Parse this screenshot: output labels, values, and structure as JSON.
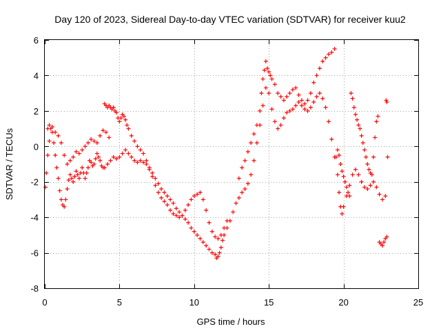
{
  "chart_data": {
    "type": "scatter",
    "title": "Day 120 of 2023, Sidereal Day-to-day VTEC variation (SDTVAR) for receiver kuu2",
    "xlabel": "GPS time / hours",
    "ylabel": "SDTVAR / TECUs",
    "xlim": [
      0,
      25
    ],
    "ylim": [
      -8,
      6
    ],
    "xticks": [
      0,
      5,
      10,
      15,
      20,
      25
    ],
    "yticks": [
      -8,
      -6,
      -4,
      -2,
      0,
      2,
      4,
      6
    ],
    "grid": true,
    "marker": "+",
    "color": "#ff0000",
    "series": [
      {
        "name": "SDTVAR",
        "points": [
          [
            0.05,
            -2.3
          ],
          [
            0.1,
            -1.5
          ],
          [
            0.2,
            -0.5
          ],
          [
            0.3,
            0.3
          ],
          [
            0.4,
            1.0
          ],
          [
            0.5,
            0.8
          ],
          [
            0.6,
            0.2
          ],
          [
            0.7,
            -0.5
          ],
          [
            0.8,
            -1.2
          ],
          [
            0.9,
            -1.8
          ],
          [
            1.0,
            -2.5
          ],
          [
            1.1,
            -3.0
          ],
          [
            1.2,
            -3.3
          ],
          [
            1.3,
            -3.4
          ],
          [
            1.4,
            -3.0
          ],
          [
            1.5,
            -2.4
          ],
          [
            1.6,
            -1.9
          ],
          [
            1.7,
            -1.6
          ],
          [
            1.8,
            -1.8
          ],
          [
            1.9,
            -2.0
          ],
          [
            2.0,
            -1.7
          ],
          [
            2.1,
            -1.4
          ],
          [
            2.2,
            -1.6
          ],
          [
            2.3,
            -1.8
          ],
          [
            2.4,
            -1.5
          ],
          [
            2.5,
            -1.2
          ],
          [
            2.6,
            -1.5
          ],
          [
            2.7,
            -1.8
          ],
          [
            2.8,
            -1.5
          ],
          [
            2.9,
            -1.2
          ],
          [
            3.0,
            -0.8
          ],
          [
            3.1,
            -0.9
          ],
          [
            3.2,
            -1.1
          ],
          [
            3.3,
            -1.0
          ],
          [
            3.4,
            -0.7
          ],
          [
            3.5,
            -0.4
          ],
          [
            3.6,
            -0.6
          ],
          [
            3.7,
            -0.8
          ],
          [
            3.8,
            -1.1
          ],
          [
            3.9,
            -1.2
          ],
          [
            4.0,
            -1.2
          ],
          [
            4.2,
            -1.0
          ],
          [
            4.4,
            -0.8
          ],
          [
            4.6,
            -0.6
          ],
          [
            4.8,
            -0.7
          ],
          [
            5.0,
            -0.6
          ],
          [
            5.2,
            -0.4
          ],
          [
            5.4,
            -0.2
          ],
          [
            5.6,
            -0.4
          ],
          [
            5.8,
            -0.6
          ],
          [
            6.0,
            -0.8
          ],
          [
            6.2,
            -0.9
          ],
          [
            6.4,
            -0.8
          ],
          [
            6.6,
            -0.9
          ],
          [
            6.8,
            -1.0
          ],
          [
            7.0,
            -1.2
          ],
          [
            7.2,
            -1.5
          ],
          [
            7.4,
            -1.8
          ],
          [
            7.6,
            -2.1
          ],
          [
            7.8,
            -2.4
          ],
          [
            8.0,
            -2.6
          ],
          [
            8.2,
            -2.8
          ],
          [
            8.4,
            -3.0
          ],
          [
            8.6,
            -3.2
          ],
          [
            8.8,
            -3.5
          ],
          [
            9.0,
            -3.7
          ],
          [
            9.2,
            -3.9
          ],
          [
            9.4,
            -4.1
          ],
          [
            9.6,
            -4.3
          ],
          [
            9.8,
            -4.6
          ],
          [
            10.0,
            -4.8
          ],
          [
            10.2,
            -5.0
          ],
          [
            10.4,
            -5.2
          ],
          [
            10.6,
            -5.4
          ],
          [
            10.8,
            -5.6
          ],
          [
            11.0,
            -5.8
          ],
          [
            11.2,
            -6.0
          ],
          [
            11.4,
            -6.1
          ],
          [
            11.5,
            -6.3
          ],
          [
            11.6,
            -6.2
          ],
          [
            11.7,
            -6.0
          ],
          [
            11.8,
            -5.7
          ],
          [
            11.9,
            -5.3
          ],
          [
            12.0,
            -5.0
          ],
          [
            12.2,
            -4.6
          ],
          [
            12.4,
            -4.2
          ],
          [
            12.6,
            -3.7
          ],
          [
            12.8,
            -3.2
          ],
          [
            13.0,
            -2.9
          ],
          [
            13.2,
            -2.6
          ],
          [
            13.4,
            -2.4
          ],
          [
            13.6,
            -2.1
          ],
          [
            13.8,
            -1.6
          ],
          [
            14.0,
            -0.8
          ],
          [
            14.2,
            0.2
          ],
          [
            14.4,
            1.2
          ],
          [
            14.6,
            2.3
          ],
          [
            14.8,
            3.3
          ],
          [
            15.0,
            3.0
          ],
          [
            15.2,
            2.1
          ],
          [
            15.4,
            1.4
          ],
          [
            15.6,
            1.0
          ],
          [
            15.8,
            1.2
          ],
          [
            16.0,
            1.6
          ],
          [
            16.2,
            1.9
          ],
          [
            16.4,
            2.0
          ],
          [
            16.6,
            2.1
          ],
          [
            16.8,
            2.3
          ],
          [
            17.0,
            2.5
          ],
          [
            17.2,
            2.3
          ],
          [
            17.4,
            2.1
          ],
          [
            17.6,
            2.0
          ],
          [
            17.8,
            2.2
          ],
          [
            18.0,
            2.5
          ],
          [
            18.2,
            2.8
          ],
          [
            18.4,
            3.0
          ],
          [
            18.6,
            2.7
          ],
          [
            18.8,
            2.2
          ],
          [
            19.0,
            1.4
          ],
          [
            19.2,
            0.4
          ],
          [
            19.4,
            -0.6
          ],
          [
            19.6,
            -1.6
          ],
          [
            19.7,
            -2.6
          ],
          [
            19.8,
            -3.4
          ],
          [
            19.9,
            -3.8
          ],
          [
            20.0,
            -3.4
          ],
          [
            20.2,
            -2.8
          ],
          [
            20.4,
            -2.2
          ],
          [
            20.6,
            -1.6
          ],
          [
            20.8,
            -1.3
          ],
          [
            21.0,
            -1.6
          ],
          [
            21.2,
            -2.0
          ],
          [
            21.4,
            -2.3
          ],
          [
            21.6,
            -2.4
          ],
          [
            21.8,
            -2.2
          ],
          [
            22.0,
            -2.0
          ],
          [
            22.2,
            -2.3
          ],
          [
            22.4,
            -2.7
          ],
          [
            22.6,
            -3.0
          ],
          [
            22.8,
            -2.8
          ],
          [
            0.2,
            1.0
          ],
          [
            0.3,
            1.2
          ],
          [
            0.5,
            1.1
          ],
          [
            0.7,
            0.8
          ],
          [
            0.9,
            0.6
          ],
          [
            1.1,
            0.2
          ],
          [
            1.3,
            -0.5
          ],
          [
            1.5,
            -1.0
          ],
          [
            1.7,
            -0.8
          ],
          [
            1.9,
            -0.6
          ],
          [
            2.1,
            -0.3
          ],
          [
            2.3,
            -0.4
          ],
          [
            2.5,
            -0.2
          ],
          [
            2.7,
            0.0
          ],
          [
            2.9,
            0.2
          ],
          [
            3.1,
            0.4
          ],
          [
            3.3,
            0.3
          ],
          [
            3.5,
            0.2
          ],
          [
            3.7,
            0.6
          ],
          [
            3.9,
            0.9
          ],
          [
            4.1,
            0.8
          ],
          [
            4.3,
            0.5
          ],
          [
            4.0,
            2.4
          ],
          [
            4.1,
            2.3
          ],
          [
            4.2,
            2.2
          ],
          [
            4.3,
            2.3
          ],
          [
            4.4,
            2.2
          ],
          [
            4.5,
            2.1
          ],
          [
            4.6,
            2.2
          ],
          [
            4.7,
            2.0
          ],
          [
            4.8,
            1.9
          ],
          [
            4.9,
            1.6
          ],
          [
            5.0,
            1.4
          ],
          [
            5.1,
            1.6
          ],
          [
            5.2,
            1.8
          ],
          [
            5.3,
            1.7
          ],
          [
            5.4,
            1.5
          ],
          [
            5.5,
            1.2
          ],
          [
            5.6,
            1.0
          ],
          [
            5.8,
            0.6
          ],
          [
            6.0,
            0.3
          ],
          [
            6.2,
            0.0
          ],
          [
            6.4,
            -0.2
          ],
          [
            6.6,
            -0.4
          ],
          [
            6.8,
            -0.8
          ],
          [
            7.0,
            -1.3
          ],
          [
            7.2,
            -1.7
          ],
          [
            7.4,
            -2.2
          ],
          [
            7.6,
            -2.6
          ],
          [
            7.8,
            -2.9
          ],
          [
            8.0,
            -3.1
          ],
          [
            8.2,
            -3.3
          ],
          [
            8.4,
            -3.6
          ],
          [
            8.6,
            -3.8
          ],
          [
            8.8,
            -3.9
          ],
          [
            9.0,
            -4.0
          ],
          [
            9.2,
            -3.9
          ],
          [
            9.4,
            -3.6
          ],
          [
            9.6,
            -3.3
          ],
          [
            9.8,
            -3.0
          ],
          [
            10.0,
            -2.8
          ],
          [
            10.2,
            -2.7
          ],
          [
            10.4,
            -2.6
          ],
          [
            10.6,
            -3.0
          ],
          [
            10.8,
            -3.6
          ],
          [
            11.0,
            -4.3
          ],
          [
            11.2,
            -4.8
          ],
          [
            11.4,
            -5.1
          ],
          [
            11.6,
            -5.2
          ],
          [
            11.8,
            -5.0
          ],
          [
            12.0,
            -4.6
          ],
          [
            12.2,
            -4.2
          ],
          [
            13.0,
            -1.8
          ],
          [
            13.2,
            -1.2
          ],
          [
            13.4,
            -0.8
          ],
          [
            13.6,
            -0.3
          ],
          [
            13.8,
            0.2
          ],
          [
            14.0,
            0.7
          ],
          [
            14.2,
            1.2
          ],
          [
            14.4,
            2.0
          ],
          [
            14.5,
            3.0
          ],
          [
            14.6,
            3.8
          ],
          [
            14.7,
            4.3
          ],
          [
            14.8,
            4.8
          ],
          [
            14.9,
            4.4
          ],
          [
            15.0,
            4.2
          ],
          [
            15.1,
            4.0
          ],
          [
            15.2,
            3.8
          ],
          [
            15.4,
            3.5
          ],
          [
            15.6,
            3.0
          ],
          [
            15.8,
            2.8
          ],
          [
            16.0,
            2.6
          ],
          [
            16.2,
            2.8
          ],
          [
            16.4,
            3.0
          ],
          [
            16.6,
            3.2
          ],
          [
            16.8,
            3.3
          ],
          [
            17.0,
            2.9
          ],
          [
            17.2,
            2.6
          ],
          [
            17.4,
            2.4
          ],
          [
            17.6,
            2.6
          ],
          [
            17.8,
            3.0
          ],
          [
            18.0,
            3.6
          ],
          [
            18.2,
            4.0
          ],
          [
            18.4,
            4.4
          ],
          [
            18.6,
            4.8
          ],
          [
            18.8,
            5.0
          ],
          [
            19.0,
            5.2
          ],
          [
            19.2,
            5.3
          ],
          [
            19.4,
            5.5
          ],
          [
            20.5,
            3.0
          ],
          [
            20.6,
            2.7
          ],
          [
            20.7,
            2.2
          ],
          [
            20.8,
            1.8
          ],
          [
            20.9,
            1.5
          ],
          [
            21.0,
            1.2
          ],
          [
            21.1,
            1.0
          ],
          [
            21.2,
            0.6
          ],
          [
            21.3,
            0.2
          ],
          [
            21.4,
            -0.2
          ],
          [
            21.5,
            -0.6
          ],
          [
            21.6,
            -1.0
          ],
          [
            21.7,
            -1.3
          ],
          [
            21.8,
            -1.5
          ],
          [
            21.9,
            -1.6
          ],
          [
            22.0,
            -0.6
          ],
          [
            22.1,
            0.5
          ],
          [
            22.2,
            1.4
          ],
          [
            22.3,
            1.7
          ],
          [
            19.5,
            -0.6
          ],
          [
            19.6,
            -0.2
          ],
          [
            19.7,
            -0.5
          ],
          [
            19.8,
            -1.0
          ],
          [
            19.9,
            -1.4
          ],
          [
            20.0,
            -1.7
          ],
          [
            20.1,
            -2.0
          ],
          [
            20.2,
            -2.3
          ],
          [
            20.3,
            -2.6
          ],
          [
            20.4,
            -2.8
          ],
          [
            22.4,
            -5.4
          ],
          [
            22.5,
            -5.5
          ],
          [
            22.6,
            -5.6
          ],
          [
            22.7,
            -5.4
          ],
          [
            22.8,
            -5.2
          ],
          [
            22.9,
            -5.1
          ],
          [
            22.85,
            2.6
          ],
          [
            22.9,
            2.5
          ],
          [
            22.95,
            -0.6
          ]
        ]
      }
    ]
  }
}
